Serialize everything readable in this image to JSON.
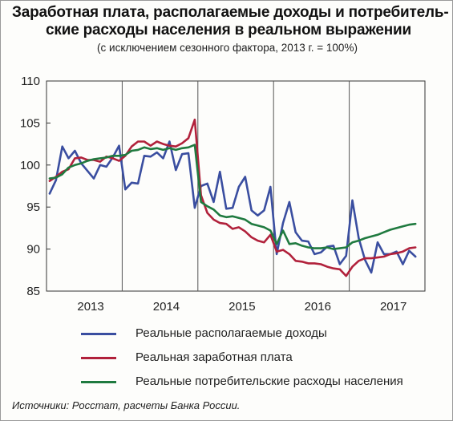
{
  "title_line1": "Заработная плата, располагаемые доходы и потребитель-",
  "title_line2": "ские расходы населения в реальном выражении",
  "subtitle": "(с исключением сезонного фактора, 2013 г. = 100%)",
  "source": "Источники: Росстат, расчеты Банка России.",
  "chart_data": {
    "type": "line",
    "title": "Заработная плата, располагаемые доходы и потребительские расходы населения в реальном выражении",
    "subtitle": "(с исключением сезонного фактора, 2013 г. = 100%)",
    "x_labels": [
      "2013",
      "2014",
      "2015",
      "2016",
      "2017"
    ],
    "x_label_positions": [
      6.5,
      18.5,
      30.5,
      42.5,
      54.5
    ],
    "year_boundaries": [
      12,
      24,
      36,
      48
    ],
    "xlim": [
      -0.5,
      59.5
    ],
    "ylim": [
      85,
      110
    ],
    "yticks": [
      85,
      90,
      95,
      100,
      105,
      110
    ],
    "grid": "vertical year dividers",
    "legend_position": "bottom",
    "series": [
      {
        "name": "Реальные располагаемые доходы",
        "color": "#3a4ea0",
        "values": [
          96.6,
          98.2,
          102.2,
          100.8,
          101.7,
          100.2,
          99.3,
          98.4,
          100.0,
          99.8,
          100.9,
          102.3,
          97.1,
          97.9,
          97.8,
          101.1,
          101.0,
          101.5,
          100.8,
          102.8,
          99.4,
          101.3,
          101.4,
          94.9,
          97.5,
          97.8,
          95.6,
          99.2,
          94.8,
          94.9,
          97.4,
          98.6,
          94.6,
          94.0,
          94.6,
          97.4,
          89.4,
          93.1,
          95.6,
          92.0,
          91.0,
          90.9,
          89.4,
          89.6,
          90.3,
          90.4,
          88.2,
          89.2,
          95.8,
          91.3,
          88.7,
          87.2,
          90.8,
          89.4,
          89.4,
          89.7,
          88.2,
          89.8,
          89.1
        ]
      },
      {
        "name": "Реальная заработная плата",
        "color": "#b1213b",
        "values": [
          98.1,
          98.6,
          99.2,
          99.5,
          100.8,
          100.9,
          100.6,
          100.6,
          100.4,
          101.0,
          100.8,
          100.5,
          101.1,
          102.2,
          102.8,
          102.8,
          102.3,
          102.8,
          102.5,
          102.3,
          102.2,
          102.6,
          103.2,
          105.4,
          96.4,
          94.3,
          93.5,
          93.1,
          93.0,
          92.4,
          92.6,
          92.1,
          91.4,
          91.0,
          90.8,
          91.7,
          89.7,
          89.9,
          89.4,
          88.6,
          88.5,
          88.3,
          88.3,
          88.2,
          87.9,
          87.7,
          87.6,
          86.8,
          87.9,
          88.6,
          88.9,
          88.9,
          89.0,
          89.1,
          89.4,
          89.5,
          89.7,
          90.1,
          90.2
        ]
      },
      {
        "name": "Реальные потребительские расходы населения",
        "color": "#1f7a3f",
        "values": [
          98.4,
          98.5,
          98.9,
          99.7,
          100.0,
          100.2,
          100.5,
          100.7,
          100.8,
          100.9,
          101.1,
          101.1,
          101.2,
          101.7,
          101.8,
          102.1,
          101.9,
          102.0,
          101.8,
          102.0,
          101.8,
          102.0,
          102.1,
          102.4,
          95.6,
          95.1,
          94.7,
          94.0,
          93.8,
          93.9,
          93.7,
          93.5,
          93.0,
          92.8,
          92.6,
          92.2,
          90.6,
          92.2,
          90.6,
          90.7,
          90.4,
          90.2,
          90.1,
          90.1,
          90.2,
          90.0,
          90.1,
          90.2,
          90.8,
          91.0,
          91.3,
          91.5,
          91.7,
          92.0,
          92.3,
          92.5,
          92.7,
          92.9,
          93.0
        ]
      }
    ]
  }
}
